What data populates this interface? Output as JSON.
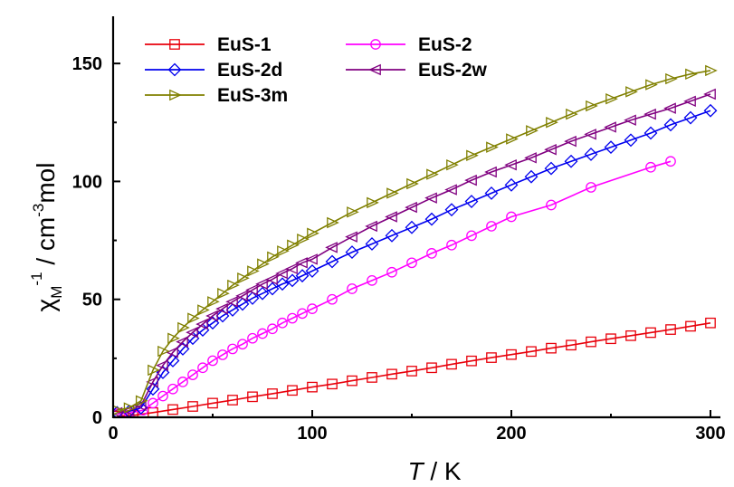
{
  "chart_data": {
    "type": "line",
    "title": "",
    "xlabel": {
      "italic": "T",
      "rest": " / K"
    },
    "ylabel": {
      "chi": "χ",
      "sub": "M",
      "sup1": "-1",
      "mid": " / cm",
      "sup2": "-3",
      "end": "mol"
    },
    "xlim": [
      0,
      305
    ],
    "ylim": [
      0,
      170
    ],
    "x_ticks": [
      0,
      100,
      200,
      300
    ],
    "x_tick_labels": [
      "0",
      "100",
      "200",
      "300"
    ],
    "y_ticks": [
      0,
      50,
      100,
      150
    ],
    "y_tick_labels": [
      "0",
      "50",
      "100",
      "150"
    ],
    "grid": false,
    "legend_position": "top-left",
    "series": [
      {
        "name": "EuS-1",
        "color": "#e8000b",
        "marker": "square",
        "x": [
          2,
          10,
          20,
          30,
          40,
          50,
          60,
          70,
          80,
          90,
          100,
          110,
          120,
          130,
          140,
          150,
          160,
          170,
          180,
          190,
          200,
          210,
          220,
          230,
          240,
          250,
          260,
          270,
          280,
          290,
          300
        ],
        "y": [
          0.5,
          0.8,
          2.0,
          3.3,
          4.6,
          6.0,
          7.3,
          8.7,
          10.0,
          11.4,
          12.8,
          14.1,
          15.5,
          16.9,
          18.3,
          19.6,
          21.0,
          22.5,
          23.9,
          25.3,
          26.6,
          27.9,
          29.3,
          30.6,
          32.0,
          33.3,
          34.6,
          35.9,
          37.2,
          38.6,
          40.0
        ]
      },
      {
        "name": "EuS-2",
        "color": "#ff00ff",
        "marker": "circle",
        "x": [
          2,
          8,
          15,
          20,
          25,
          30,
          35,
          40,
          45,
          50,
          55,
          60,
          65,
          70,
          75,
          80,
          85,
          90,
          95,
          100,
          110,
          120,
          130,
          140,
          150,
          160,
          170,
          180,
          190,
          200,
          220,
          240,
          270,
          280
        ],
        "y": [
          1.5,
          1.8,
          3.0,
          6.0,
          9.0,
          12.0,
          15.0,
          18.0,
          21.0,
          24.0,
          26.5,
          29.0,
          31.0,
          33.5,
          35.5,
          37.5,
          40.0,
          42.0,
          44.0,
          46.0,
          50.0,
          54.5,
          58.0,
          61.5,
          65.5,
          69.5,
          73.0,
          77.0,
          81.0,
          85.0,
          90.0,
          97.5,
          106.0,
          108.5
        ]
      },
      {
        "name": "EuS-2d",
        "color": "#0000ee",
        "marker": "diamond",
        "x": [
          2,
          8,
          14,
          20,
          25,
          30,
          35,
          40,
          45,
          50,
          55,
          60,
          65,
          70,
          75,
          80,
          85,
          90,
          95,
          100,
          110,
          120,
          130,
          140,
          150,
          160,
          170,
          180,
          190,
          200,
          210,
          220,
          230,
          240,
          250,
          260,
          270,
          280,
          290,
          300
        ],
        "y": [
          2.0,
          2.5,
          4.0,
          12.0,
          19.0,
          24.0,
          29.0,
          33.5,
          37.0,
          40.0,
          43.0,
          45.5,
          48.0,
          50.5,
          52.5,
          54.5,
          56.5,
          58.0,
          60.0,
          62.0,
          66.0,
          70.0,
          73.5,
          77.0,
          80.5,
          84.0,
          88.0,
          91.5,
          95.0,
          98.5,
          102.0,
          105.5,
          108.5,
          111.5,
          114.5,
          117.5,
          120.5,
          124.0,
          127.0,
          130.0
        ]
      },
      {
        "name": "EuS-2w",
        "color": "#800080",
        "marker": "triangle-left",
        "x": [
          2,
          8,
          14,
          20,
          25,
          30,
          35,
          40,
          45,
          50,
          55,
          60,
          65,
          70,
          75,
          80,
          85,
          90,
          95,
          100,
          110,
          120,
          130,
          140,
          150,
          160,
          170,
          180,
          190,
          200,
          210,
          220,
          230,
          240,
          250,
          260,
          270,
          280,
          290,
          300
        ],
        "y": [
          2.0,
          2.8,
          5.0,
          15.0,
          22.0,
          27.5,
          32.0,
          36.0,
          39.5,
          43.0,
          46.0,
          49.0,
          51.5,
          54.0,
          56.5,
          58.5,
          61.0,
          63.0,
          65.5,
          67.0,
          72.0,
          76.5,
          81.0,
          85.0,
          89.0,
          93.0,
          96.5,
          100.5,
          104.0,
          107.0,
          110.0,
          113.5,
          117.0,
          120.0,
          123.0,
          126.0,
          128.5,
          131.0,
          134.0,
          137.0
        ]
      },
      {
        "name": "EuS-3m",
        "color": "#808000",
        "marker": "triangle-right",
        "x": [
          2,
          8,
          14,
          20,
          25,
          30,
          35,
          40,
          45,
          50,
          55,
          60,
          65,
          70,
          75,
          80,
          85,
          90,
          95,
          100,
          110,
          120,
          130,
          140,
          150,
          160,
          170,
          180,
          190,
          200,
          210,
          220,
          230,
          240,
          250,
          260,
          270,
          280,
          290,
          300
        ],
        "y": [
          3.0,
          4.0,
          7.0,
          20.0,
          28.0,
          33.5,
          38.0,
          42.0,
          45.5,
          49.0,
          52.5,
          56.0,
          59.0,
          62.0,
          65.0,
          68.0,
          70.5,
          73.0,
          75.5,
          78.0,
          82.5,
          87.0,
          91.0,
          95.0,
          99.0,
          103.0,
          107.0,
          111.0,
          114.5,
          118.0,
          121.5,
          125.0,
          128.5,
          132.0,
          135.0,
          138.0,
          141.0,
          143.5,
          145.5,
          147.0
        ]
      }
    ]
  }
}
